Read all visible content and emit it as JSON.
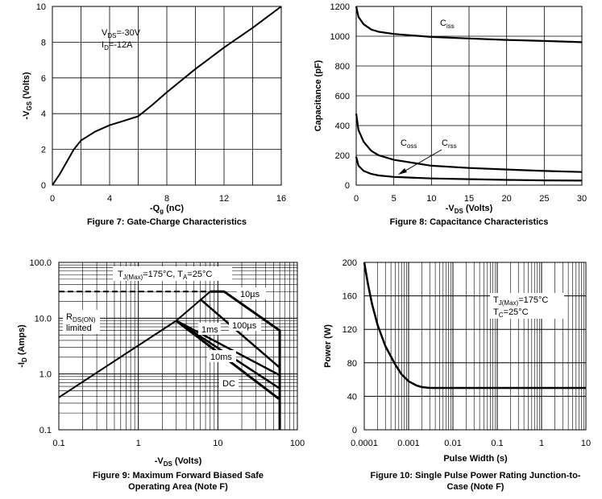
{
  "chart_data": [
    {
      "type": "line",
      "caption": "Figure 7: Gate-Charge Characteristics",
      "xlabel": "-Qg (nC)",
      "ylabel": "-VGS (Volts)",
      "xlim": [
        0,
        16
      ],
      "ylim": [
        0,
        10
      ],
      "xticks": [
        "0",
        "4",
        "8",
        "12",
        "16"
      ],
      "yticks": [
        "0",
        "2",
        "4",
        "6",
        "8",
        "10"
      ],
      "annotations": [
        "VDS=-30V",
        "ID=-12A"
      ],
      "series": [
        {
          "x": [
            0,
            0.5,
            1,
            1.5,
            2,
            2.3,
            3,
            4,
            5,
            6,
            7,
            8,
            10,
            12,
            14,
            16
          ],
          "y": [
            0,
            0.6,
            1.3,
            2.0,
            2.5,
            2.65,
            3.0,
            3.35,
            3.6,
            3.85,
            4.5,
            5.2,
            6.5,
            7.7,
            8.8,
            10.0
          ]
        }
      ],
      "grid": true
    },
    {
      "type": "line",
      "caption": "Figure 8: Capacitance Characteristics",
      "xlabel": "-VDS (Volts)",
      "ylabel": "Capacitance (pF)",
      "xlim": [
        0,
        30
      ],
      "ylim": [
        0,
        1200
      ],
      "xticks": [
        "0",
        "5",
        "10",
        "15",
        "20",
        "25",
        "30"
      ],
      "yticks": [
        "0",
        "200",
        "400",
        "600",
        "800",
        "1000",
        "1200"
      ],
      "series": [
        {
          "name": "Ciss",
          "x": [
            0,
            0.3,
            1,
            2,
            3,
            5,
            10,
            15,
            20,
            25,
            30
          ],
          "y": [
            1200,
            1130,
            1080,
            1045,
            1030,
            1015,
            995,
            985,
            975,
            968,
            960
          ]
        },
        {
          "name": "Coss",
          "x": [
            0,
            0.3,
            1,
            2,
            3,
            5,
            10,
            15,
            20,
            25,
            30
          ],
          "y": [
            480,
            370,
            290,
            230,
            200,
            170,
            130,
            115,
            105,
            95,
            88
          ]
        },
        {
          "name": "Crss",
          "x": [
            0,
            0.3,
            1,
            2,
            3,
            5,
            10,
            15,
            20,
            25,
            30
          ],
          "y": [
            190,
            130,
            95,
            75,
            65,
            55,
            45,
            40,
            35,
            32,
            30
          ]
        }
      ],
      "grid": true
    },
    {
      "type": "line",
      "caption": "Figure 9: Maximum Forward Biased Safe Operating Area (Note F)",
      "xlabel": "-VDS (Volts)",
      "ylabel": "-ID (Amps)",
      "xscale": "log",
      "yscale": "log",
      "xlim": [
        0.1,
        100
      ],
      "ylim": [
        0.1,
        100
      ],
      "xticks": [
        "0.1",
        "1",
        "10",
        "100"
      ],
      "yticks": [
        "0.1",
        "1.0",
        "10.0",
        "100.0"
      ],
      "annotations": [
        "TJ(Max)=175°C, TA=25°C",
        "RDS(ON)",
        "limited"
      ],
      "series": [
        {
          "name": "RDS(ON) limited",
          "x": [
            0.1,
            3,
            8
          ],
          "y": [
            0.38,
            9,
            30
          ]
        },
        {
          "name": "10µs",
          "x": [
            8,
            12,
            60,
            60
          ],
          "y": [
            30,
            30,
            6,
            0.1
          ]
        },
        {
          "name": "100µs",
          "x": [
            6,
            60
          ],
          "y": [
            22,
            1.3
          ]
        },
        {
          "name": "1ms",
          "x": [
            3,
            60
          ],
          "y": [
            9,
            0.95
          ]
        },
        {
          "name": "10ms",
          "x": [
            3,
            60
          ],
          "y": [
            9,
            0.55
          ]
        },
        {
          "name": "DC",
          "x": [
            3,
            60
          ],
          "y": [
            9,
            0.35
          ]
        },
        {
          "name": "ID limit",
          "x": [
            0.1,
            8
          ],
          "y": [
            30,
            30
          ]
        }
      ],
      "labels": [
        "10µs",
        "1ms",
        "100µs",
        "10ms",
        "DC"
      ],
      "grid": true
    },
    {
      "type": "line",
      "caption": "Figure 10: Single Pulse Power Rating Junction-to-Case (Note F)",
      "xlabel": "Pulse Width (s)",
      "ylabel": "Power (W)",
      "xscale": "log",
      "xlim": [
        0.0001,
        10
      ],
      "ylim": [
        0,
        200
      ],
      "xticks": [
        "0.0001",
        "0.001",
        "0.01",
        "0.1",
        "1",
        "10"
      ],
      "yticks": [
        "0",
        "40",
        "80",
        "120",
        "160",
        "200"
      ],
      "annotations": [
        "TJ(Max)=175°C",
        "TC=25°C"
      ],
      "series": [
        {
          "x": [
            0.0001,
            0.00012,
            0.00015,
            0.0002,
            0.0003,
            0.0005,
            0.0007,
            0.001,
            0.0015,
            0.002,
            0.003,
            0.005,
            0.01,
            0.1,
            1,
            10
          ],
          "y": [
            200,
            175,
            150,
            125,
            100,
            78,
            66,
            58,
            53,
            51,
            50,
            50,
            50,
            50,
            50,
            50
          ]
        }
      ],
      "grid": true
    }
  ]
}
